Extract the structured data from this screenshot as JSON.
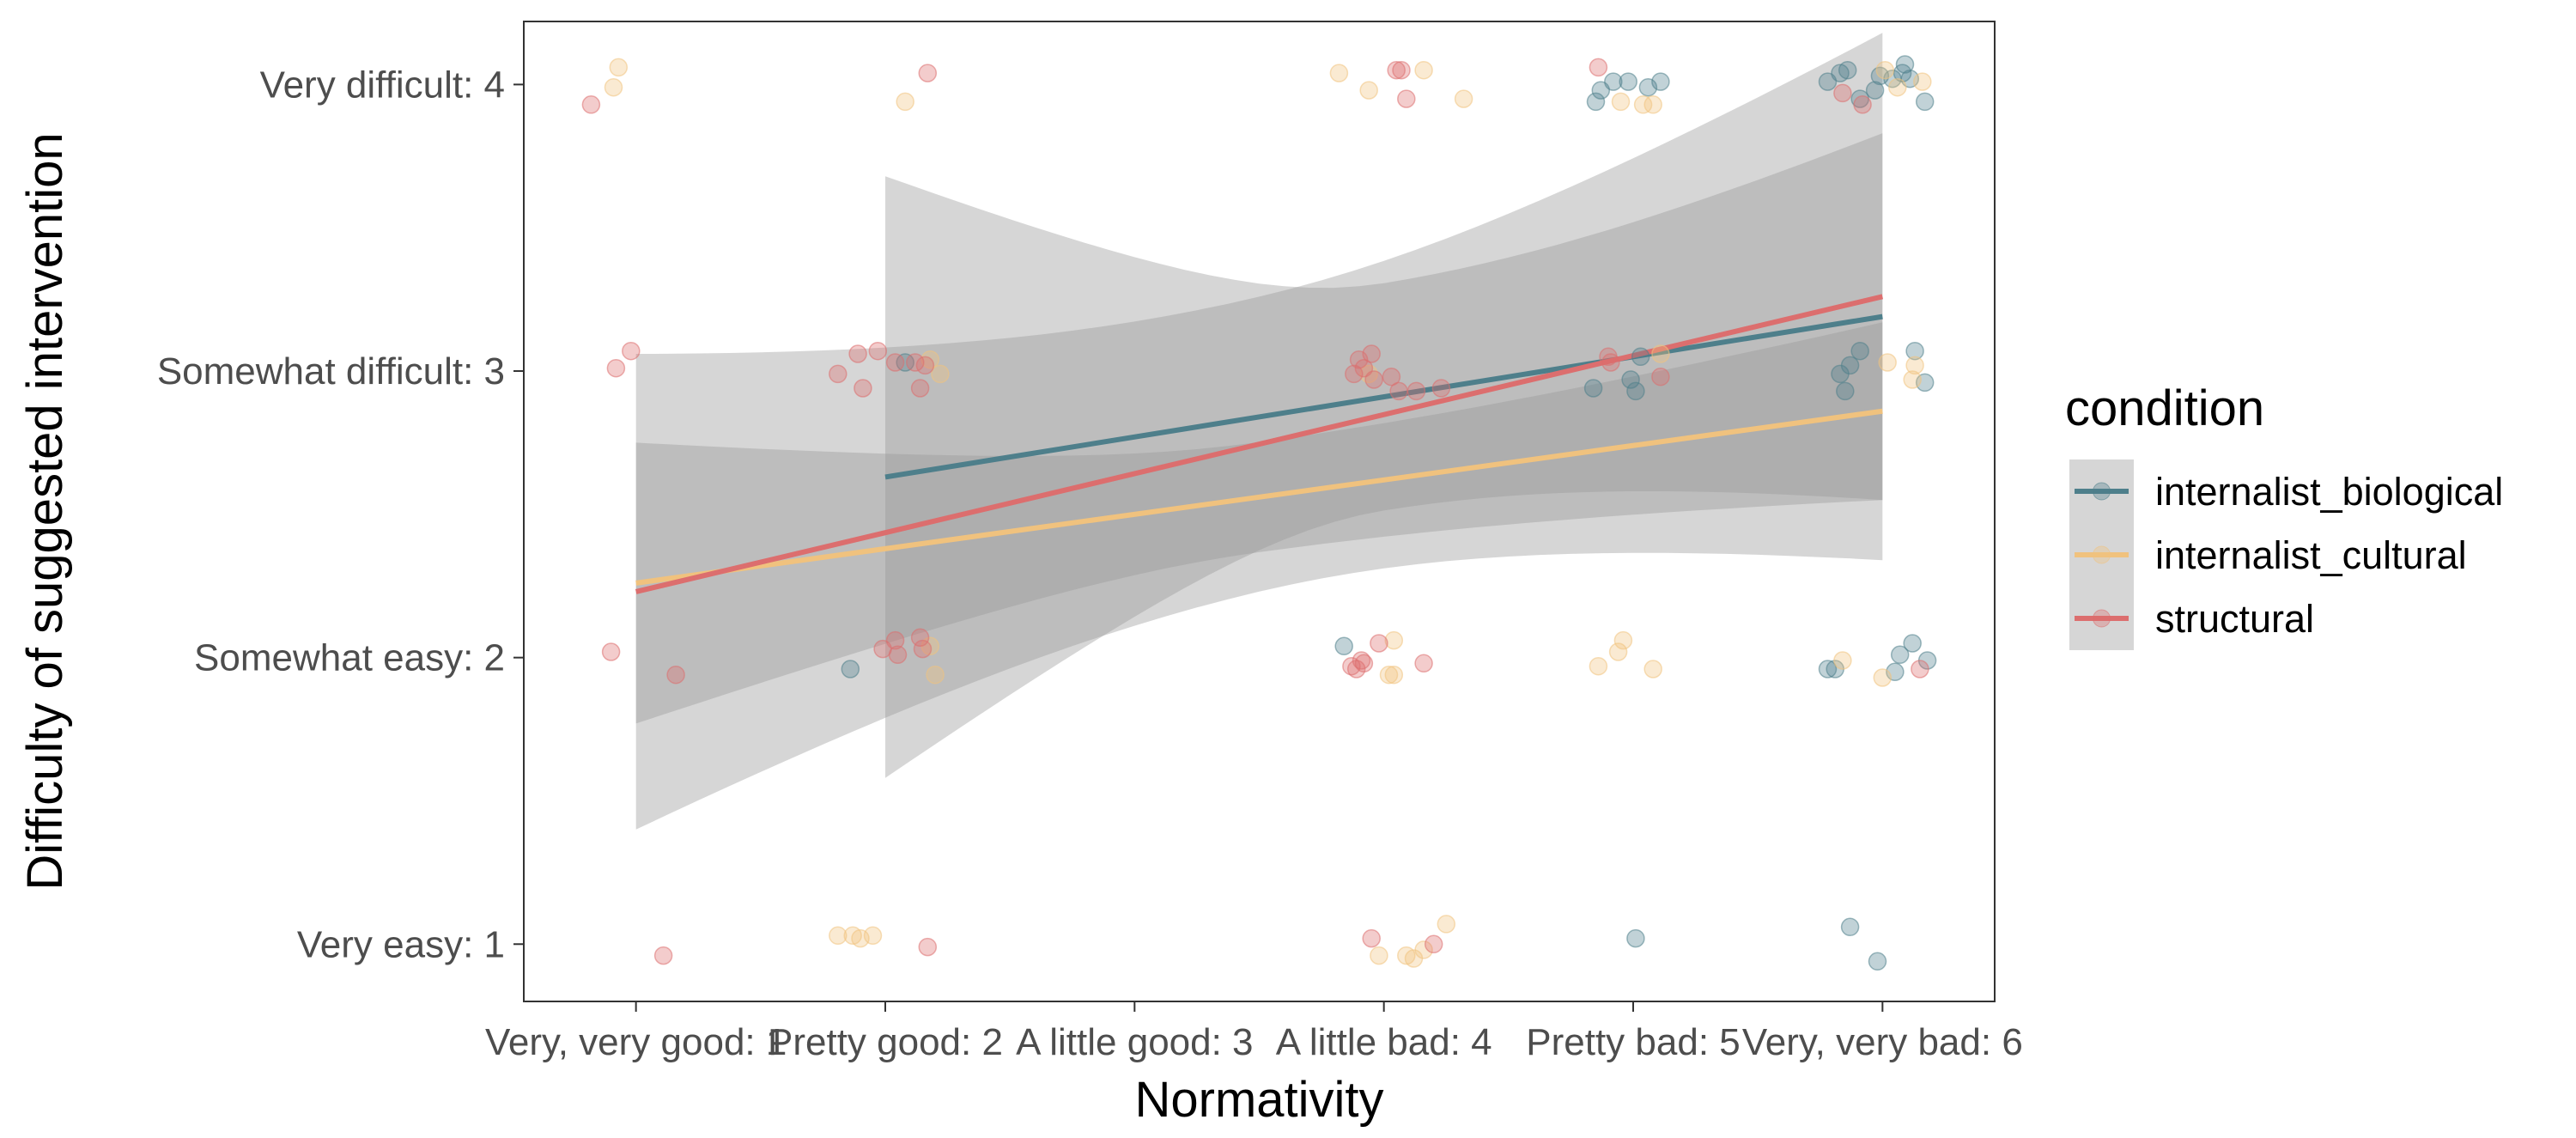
{
  "chart_data": {
    "type": "scatter",
    "xlabel": "Normativity",
    "ylabel": "Difficulty of suggested intervention",
    "x_categories": [
      "Very, very good: 1",
      "Pretty good: 2",
      "A little good: 3",
      "A little bad: 4",
      "Pretty bad: 5",
      "Very, very bad: 6"
    ],
    "y_categories": [
      "Very easy: 1",
      "Somewhat easy: 2",
      "Somewhat difficult: 3",
      "Very difficult: 4"
    ],
    "xlim": [
      0.55,
      6.45
    ],
    "ylim": [
      0.8,
      4.22
    ],
    "grid": false,
    "legend": {
      "title": "condition",
      "placement": "right",
      "entries": [
        "internalist_biological",
        "internalist_cultural",
        "structural"
      ]
    },
    "series": [
      {
        "name": "internalist_biological",
        "color": "#4e7f8b",
        "fit": {
          "x": [
            2,
            6
          ],
          "y": [
            2.63,
            3.19
          ],
          "ci_lower": [
            1.58,
            2.55
          ],
          "ci_upper": [
            3.67,
            3.51
          ]
        },
        "points": [
          [
            1.86,
            1.96
          ],
          [
            2.08,
            3.03
          ],
          [
            3.84,
            2.04
          ],
          [
            4.85,
            3.94
          ],
          [
            4.87,
            3.98
          ],
          [
            4.92,
            4.01
          ],
          [
            4.98,
            4.01
          ],
          [
            5.06,
            3.99
          ],
          [
            5.11,
            4.01
          ],
          [
            4.84,
            2.94
          ],
          [
            4.99,
            2.97
          ],
          [
            5.01,
            2.93
          ],
          [
            5.03,
            3.05
          ],
          [
            5.01,
            1.02
          ],
          [
            5.78,
            4.01
          ],
          [
            5.83,
            4.04
          ],
          [
            5.86,
            4.05
          ],
          [
            5.91,
            3.95
          ],
          [
            5.97,
            3.98
          ],
          [
            5.99,
            4.03
          ],
          [
            6.04,
            4.02
          ],
          [
            6.09,
            4.07
          ],
          [
            6.11,
            4.02
          ],
          [
            6.17,
            3.94
          ],
          [
            6.08,
            4.04
          ],
          [
            5.83,
            2.99
          ],
          [
            5.85,
            2.93
          ],
          [
            5.87,
            3.02
          ],
          [
            6.13,
            3.07
          ],
          [
            6.17,
            2.96
          ],
          [
            5.91,
            3.07
          ],
          [
            5.78,
            1.96
          ],
          [
            5.81,
            1.96
          ],
          [
            6.05,
            1.95
          ],
          [
            6.07,
            2.01
          ],
          [
            6.12,
            2.05
          ],
          [
            6.18,
            1.99
          ],
          [
            5.87,
            1.06
          ],
          [
            5.98,
            0.94
          ]
        ]
      },
      {
        "name": "internalist_cultural",
        "color": "#f0c27e",
        "fit": {
          "x": [
            1,
            6
          ],
          "y": [
            2.26,
            2.86
          ],
          "ci_lower": [
            1.77,
            2.55
          ],
          "ci_upper": [
            2.71,
            3.17
          ]
        },
        "points": [
          [
            0.91,
            3.99
          ],
          [
            0.93,
            4.06
          ],
          [
            2.08,
            3.94
          ],
          [
            3.82,
            4.04
          ],
          [
            3.94,
            3.98
          ],
          [
            4.16,
            4.05
          ],
          [
            4.32,
            3.95
          ],
          [
            4.95,
            3.94
          ],
          [
            5.04,
            3.93
          ],
          [
            5.08,
            3.93
          ],
          [
            6.01,
            4.05
          ],
          [
            6.16,
            4.01
          ],
          [
            6.06,
            3.99
          ],
          [
            2.18,
            3.04
          ],
          [
            2.22,
            2.99
          ],
          [
            3.94,
            2.99
          ],
          [
            5.11,
            3.06
          ],
          [
            6.02,
            3.03
          ],
          [
            6.13,
            3.02
          ],
          [
            6.12,
            2.97
          ],
          [
            2.18,
            2.04
          ],
          [
            2.2,
            1.94
          ],
          [
            4.96,
            2.06
          ],
          [
            4.94,
            2.02
          ],
          [
            4.86,
            1.97
          ],
          [
            5.08,
            1.96
          ],
          [
            4.02,
            1.94
          ],
          [
            4.04,
            1.94
          ],
          [
            4.04,
            2.06
          ],
          [
            5.84,
            1.99
          ],
          [
            6.0,
            1.93
          ],
          [
            1.81,
            1.03
          ],
          [
            1.87,
            1.03
          ],
          [
            1.95,
            1.03
          ],
          [
            1.9,
            1.02
          ],
          [
            3.98,
            0.96
          ],
          [
            4.09,
            0.96
          ],
          [
            4.12,
            0.95
          ],
          [
            4.25,
            1.07
          ],
          [
            4.16,
            0.98
          ]
        ]
      },
      {
        "name": "structural",
        "color": "#dc6e6e",
        "fit": {
          "x": [
            1,
            6
          ],
          "y": [
            2.23,
            3.26
          ],
          "ci_lower": [
            1.46,
            2.34
          ],
          "ci_upper": [
            3.06,
            3.94
          ]
        },
        "points": [
          [
            0.82,
            3.93
          ],
          [
            4.05,
            4.05
          ],
          [
            4.07,
            4.05
          ],
          [
            4.09,
            3.95
          ],
          [
            4.86,
            4.06
          ],
          [
            5.84,
            3.97
          ],
          [
            5.92,
            3.93
          ],
          [
            2.17,
            4.04
          ],
          [
            0.92,
            3.01
          ],
          [
            0.98,
            3.07
          ],
          [
            1.81,
            2.99
          ],
          [
            1.89,
            3.06
          ],
          [
            1.91,
            2.94
          ],
          [
            1.97,
            3.07
          ],
          [
            2.04,
            3.03
          ],
          [
            2.12,
            3.03
          ],
          [
            2.14,
            2.94
          ],
          [
            2.16,
            3.02
          ],
          [
            3.88,
            2.99
          ],
          [
            3.95,
            3.06
          ],
          [
            4.03,
            2.98
          ],
          [
            4.06,
            2.93
          ],
          [
            4.13,
            2.93
          ],
          [
            4.23,
            2.94
          ],
          [
            3.92,
            3.01
          ],
          [
            4.9,
            3.05
          ],
          [
            4.91,
            3.03
          ],
          [
            5.11,
            2.98
          ],
          [
            3.9,
            3.04
          ],
          [
            3.96,
            2.97
          ],
          [
            0.9,
            2.02
          ],
          [
            1.16,
            1.94
          ],
          [
            1.99,
            2.03
          ],
          [
            2.04,
            2.06
          ],
          [
            2.05,
            2.01
          ],
          [
            2.14,
            2.07
          ],
          [
            2.15,
            2.03
          ],
          [
            3.87,
            1.97
          ],
          [
            3.91,
            1.99
          ],
          [
            3.89,
            1.96
          ],
          [
            3.92,
            1.98
          ],
          [
            3.98,
            2.05
          ],
          [
            4.16,
            1.98
          ],
          [
            6.15,
            1.96
          ],
          [
            1.11,
            0.96
          ],
          [
            2.17,
            0.99
          ],
          [
            3.95,
            1.02
          ],
          [
            4.2,
            1.0
          ]
        ]
      }
    ]
  }
}
